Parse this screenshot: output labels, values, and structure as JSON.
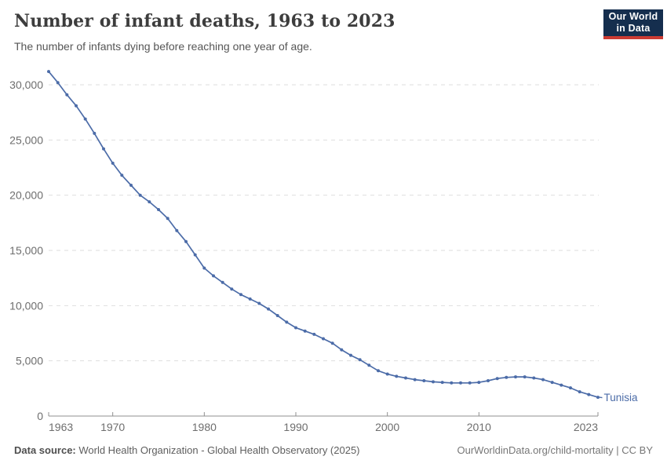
{
  "header": {
    "title": "Number of infant deaths, 1963 to 2023",
    "subtitle": "The number of infants dying before reaching one year of age.",
    "logo": {
      "line1": "Our World",
      "line2": "in Data"
    }
  },
  "chart_data": {
    "type": "line",
    "title": "Number of infant deaths, 1963 to 2023",
    "xlabel": "",
    "ylabel": "",
    "grid": "horizontal-dashed",
    "legend_position": "end-of-line-label",
    "ylim": [
      0,
      31500
    ],
    "xlim": [
      1963,
      2023
    ],
    "yticks": [
      {
        "value": 0,
        "label": "0"
      },
      {
        "value": 5000,
        "label": "5,000"
      },
      {
        "value": 10000,
        "label": "10,000"
      },
      {
        "value": 15000,
        "label": "15,000"
      },
      {
        "value": 20000,
        "label": "20,000"
      },
      {
        "value": 25000,
        "label": "25,000"
      },
      {
        "value": 30000,
        "label": "30,000"
      }
    ],
    "xticks": [
      {
        "value": 1963,
        "label": "1963",
        "anchor": "start"
      },
      {
        "value": 1970,
        "label": "1970",
        "anchor": "middle"
      },
      {
        "value": 1980,
        "label": "1980",
        "anchor": "middle"
      },
      {
        "value": 1990,
        "label": "1990",
        "anchor": "middle"
      },
      {
        "value": 2000,
        "label": "2000",
        "anchor": "middle"
      },
      {
        "value": 2010,
        "label": "2010",
        "anchor": "middle"
      },
      {
        "value": 2023,
        "label": "2023",
        "anchor": "end"
      }
    ],
    "series": [
      {
        "name": "Tunisia",
        "color": "#4c6ca8",
        "x": [
          1963,
          1964,
          1965,
          1966,
          1967,
          1968,
          1969,
          1970,
          1971,
          1972,
          1973,
          1974,
          1975,
          1976,
          1977,
          1978,
          1979,
          1980,
          1981,
          1982,
          1983,
          1984,
          1985,
          1986,
          1987,
          1988,
          1989,
          1990,
          1991,
          1992,
          1993,
          1994,
          1995,
          1996,
          1997,
          1998,
          1999,
          2000,
          2001,
          2002,
          2003,
          2004,
          2005,
          2006,
          2007,
          2008,
          2009,
          2010,
          2011,
          2012,
          2013,
          2014,
          2015,
          2016,
          2017,
          2018,
          2019,
          2020,
          2021,
          2022,
          2023
        ],
        "values": [
          31200,
          30200,
          29100,
          28100,
          26900,
          25600,
          24200,
          22900,
          21800,
          20900,
          20000,
          19400,
          18700,
          17900,
          16800,
          15800,
          14600,
          13400,
          12700,
          12100,
          11500,
          11000,
          10600,
          10200,
          9700,
          9100,
          8500,
          8000,
          7700,
          7400,
          7000,
          6600,
          6000,
          5500,
          5100,
          4600,
          4100,
          3800,
          3600,
          3450,
          3300,
          3200,
          3100,
          3050,
          3000,
          3000,
          3000,
          3050,
          3200,
          3400,
          3500,
          3550,
          3550,
          3450,
          3300,
          3050,
          2800,
          2550,
          2200,
          1950,
          1700
        ]
      }
    ]
  },
  "footer": {
    "source_label": "Data source:",
    "source_text": " World Health Organization - Global Health Observatory (2025)",
    "credit": "OurWorldinData.org/child-mortality | CC BY"
  },
  "colors": {
    "line": "#4c6ca8",
    "gridline": "#dedede",
    "axis_line": "#8f8f8f",
    "axis_text": "#6e6e6e",
    "logo_bg": "#152e4e",
    "logo_accent": "#cc3b33"
  }
}
